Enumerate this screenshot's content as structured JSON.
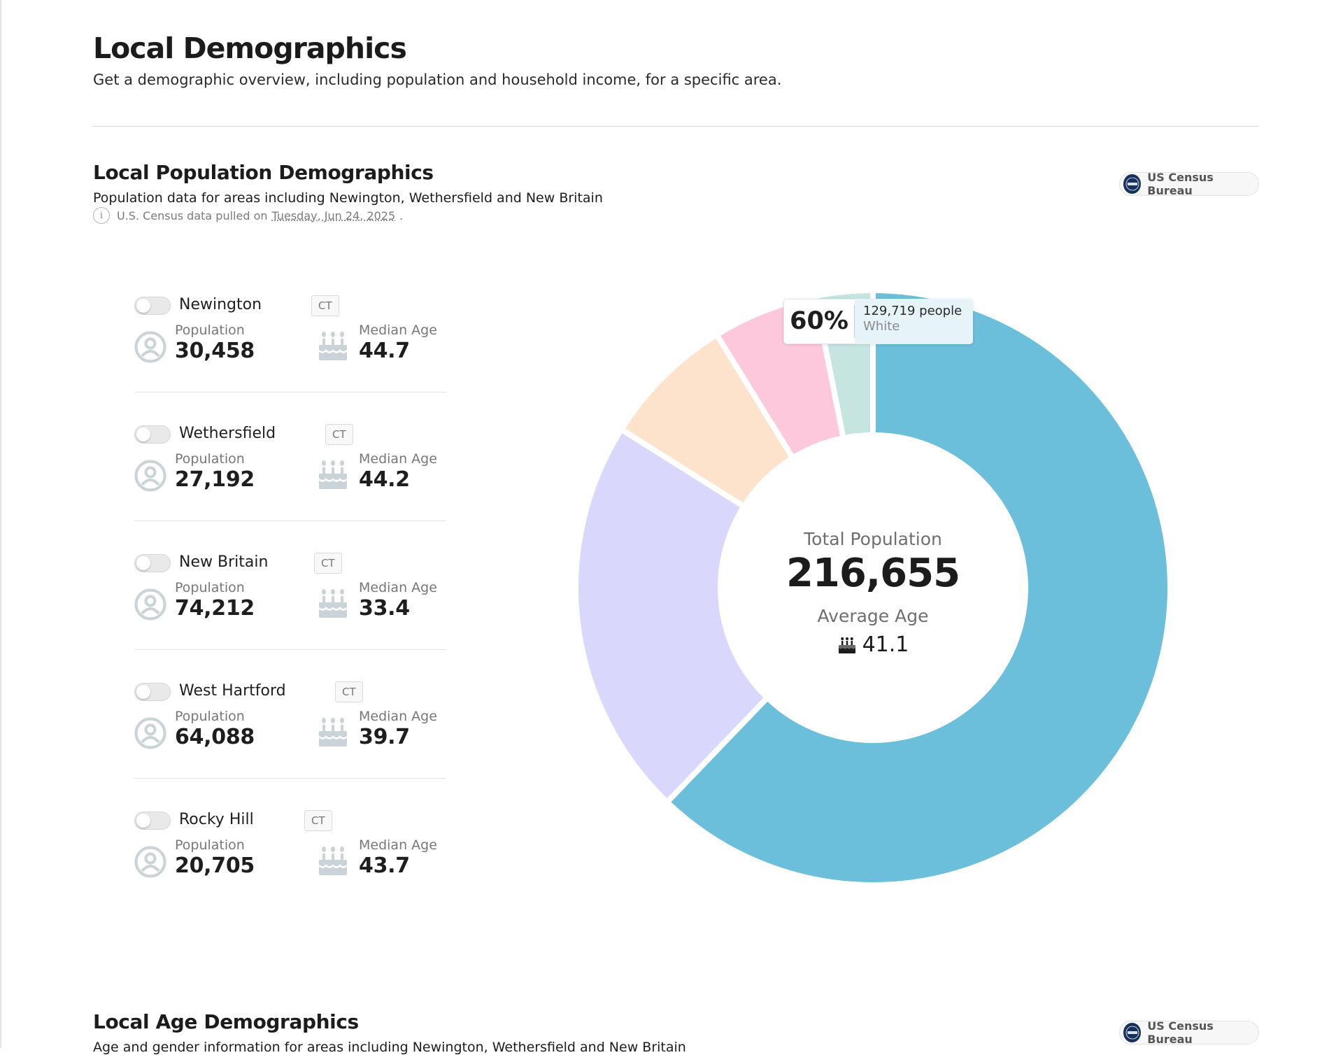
{
  "page": {
    "title": "Local Demographics",
    "subtitle": "Get a demographic overview, including population and household income, for a specific area."
  },
  "population_section": {
    "title": "Local Population Demographics",
    "subtitle": "Population data for areas including Newington, Wethersfield and New Britain",
    "info_prefix": "U.S. Census data pulled on",
    "info_date": "Tuesday, Jun 24, 2025",
    "info_suffix": ".",
    "source_badge": "US Census Bureau"
  },
  "towns": [
    {
      "name": "Newington",
      "state": "CT",
      "population_label": "Population",
      "population": "30,458",
      "age_label": "Median Age",
      "median_age": "44.7",
      "enabled": false
    },
    {
      "name": "Wethersfield",
      "state": "CT",
      "population_label": "Population",
      "population": "27,192",
      "age_label": "Median Age",
      "median_age": "44.2",
      "enabled": false
    },
    {
      "name": "New Britain",
      "state": "CT",
      "population_label": "Population",
      "population": "74,212",
      "age_label": "Median Age",
      "median_age": "33.4",
      "enabled": false
    },
    {
      "name": "West Hartford",
      "state": "CT",
      "population_label": "Population",
      "population": "64,088",
      "age_label": "Median Age",
      "median_age": "39.7",
      "enabled": false
    },
    {
      "name": "Rocky Hill",
      "state": "CT",
      "population_label": "Population",
      "population": "20,705",
      "age_label": "Median Age",
      "median_age": "43.7",
      "enabled": false
    }
  ],
  "chart_data": {
    "type": "pie",
    "title": "",
    "center": {
      "total_label": "Total Population",
      "total_value": "216,655",
      "avg_label": "Average Age",
      "avg_value": "41.1"
    },
    "tooltip": {
      "percent": "60%",
      "count": "129,719 people",
      "label": "White"
    },
    "slices": [
      {
        "value": 60,
        "color": "#6bbfda"
      },
      {
        "value": 21,
        "color": "#d9d7fc"
      },
      {
        "value": 7,
        "color": "#fde2cc"
      },
      {
        "value": 5.5,
        "color": "#fdc8dc"
      },
      {
        "value": 3,
        "color": "#c6e5e1"
      }
    ]
  },
  "age_section": {
    "title": "Local Age Demographics",
    "subtitle": "Age and gender information for areas including Newington, Wethersfield and New Britain",
    "source_badge": "US Census Bureau"
  },
  "colors": {
    "icon_gray": "#c9d3d8",
    "toggle_off": "#e9e9e9"
  }
}
